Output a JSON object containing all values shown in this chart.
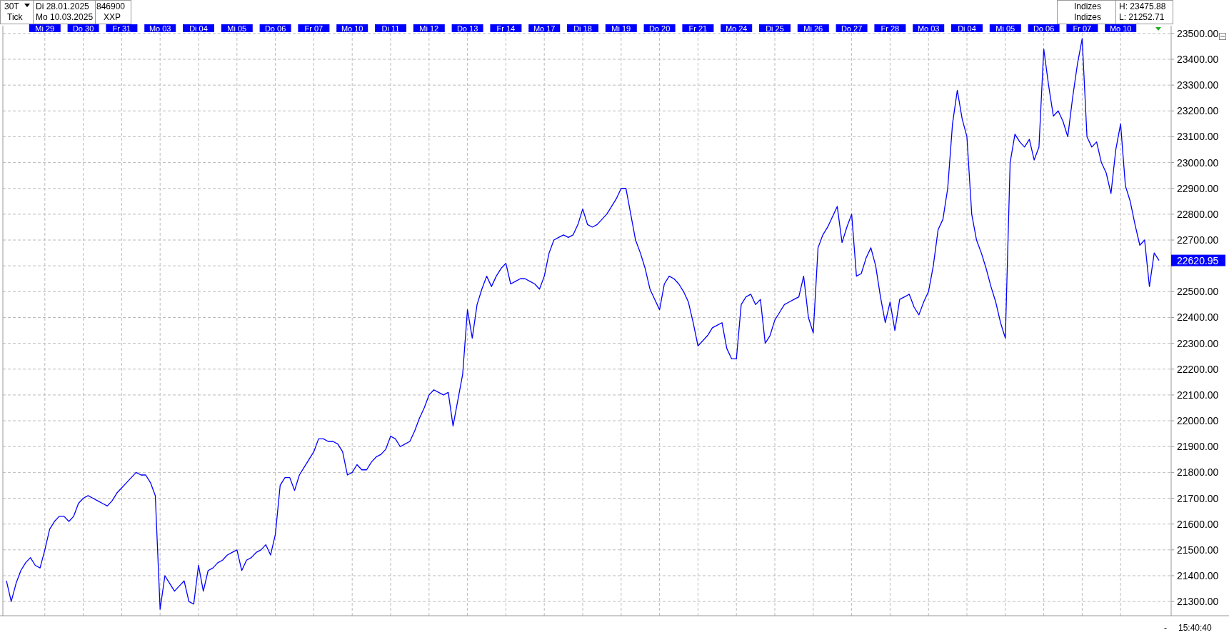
{
  "chart_data": {
    "type": "line",
    "categories": [
      null,
      null,
      null,
      null,
      null,
      null,
      null,
      null,
      "Mi 29",
      null,
      null,
      null,
      null,
      null,
      null,
      null,
      "Do 30",
      null,
      null,
      null,
      null,
      null,
      null,
      null,
      "Fr 31",
      null,
      null,
      null,
      null,
      null,
      null,
      null,
      "Mo 03",
      null,
      null,
      null,
      null,
      null,
      null,
      null,
      "Di 04",
      null,
      null,
      null,
      null,
      null,
      null,
      null,
      "Mi 05",
      null,
      null,
      null,
      null,
      null,
      null,
      null,
      "Do 06",
      null,
      null,
      null,
      null,
      null,
      null,
      null,
      "Fr 07",
      null,
      null,
      null,
      null,
      null,
      null,
      null,
      "Mo 10",
      null,
      null,
      null,
      null,
      null,
      null,
      null,
      "Di 11",
      null,
      null,
      null,
      null,
      null,
      null,
      null,
      "Mi 12",
      null,
      null,
      null,
      null,
      null,
      null,
      null,
      "Do 13",
      null,
      null,
      null,
      null,
      null,
      null,
      null,
      "Fr 14",
      null,
      null,
      null,
      null,
      null,
      null,
      null,
      "Mo 17",
      null,
      null,
      null,
      null,
      null,
      null,
      null,
      "Di 18",
      null,
      null,
      null,
      null,
      null,
      null,
      null,
      "Mi 19",
      null,
      null,
      null,
      null,
      null,
      null,
      null,
      "Do 20",
      null,
      null,
      null,
      null,
      null,
      null,
      null,
      "Fr 21",
      null,
      null,
      null,
      null,
      null,
      null,
      null,
      "Mo 24",
      null,
      null,
      null,
      null,
      null,
      null,
      null,
      "Di 25",
      null,
      null,
      null,
      null,
      null,
      null,
      null,
      "Mi 26",
      null,
      null,
      null,
      null,
      null,
      null,
      null,
      "Do 27",
      null,
      null,
      null,
      null,
      null,
      null,
      null,
      "Fr 28",
      null,
      null,
      null,
      null,
      null,
      null,
      null,
      "Mo 03",
      null,
      null,
      null,
      null,
      null,
      null,
      null,
      "Di 04",
      null,
      null,
      null,
      null,
      null,
      null,
      null,
      "Mi 05",
      null,
      null,
      null,
      null,
      null,
      null,
      null,
      "Do 06",
      null,
      null,
      null,
      null,
      null,
      null,
      null,
      "Fr 07",
      null,
      null,
      null,
      null,
      null,
      null,
      null,
      "Mo 10",
      null,
      null,
      null,
      null,
      null,
      null,
      null,
      null
    ],
    "series": [
      {
        "color": "#0000ff",
        "values": [
          21380,
          21300,
          21370,
          21420,
          21450,
          21470,
          21440,
          21430,
          21500,
          21580,
          21610,
          21630,
          21630,
          21610,
          21630,
          21680,
          21700,
          21710,
          21700,
          21690,
          21680,
          21670,
          21690,
          21720,
          21740,
          21760,
          21780,
          21800,
          21790,
          21790,
          21760,
          21710,
          21270,
          21400,
          21370,
          21340,
          21360,
          21380,
          21300,
          21290,
          21440,
          21340,
          21420,
          21430,
          21450,
          21460,
          21480,
          21490,
          21500,
          21420,
          21460,
          21470,
          21490,
          21500,
          21520,
          21480,
          21560,
          21750,
          21780,
          21780,
          21730,
          21790,
          21820,
          21850,
          21880,
          21930,
          21930,
          21920,
          21920,
          21910,
          21880,
          21790,
          21800,
          21830,
          21810,
          21810,
          21840,
          21860,
          21870,
          21890,
          21940,
          21930,
          21900,
          21910,
          21920,
          21960,
          22010,
          22050,
          22100,
          22120,
          22110,
          22100,
          22110,
          21980,
          22080,
          22180,
          22430,
          22320,
          22450,
          22510,
          22560,
          22520,
          22560,
          22590,
          22610,
          22530,
          22540,
          22550,
          22550,
          22540,
          22530,
          22510,
          22560,
          22650,
          22700,
          22710,
          22720,
          22710,
          22720,
          22760,
          22820,
          22760,
          22750,
          22760,
          22780,
          22800,
          22830,
          22860,
          22900,
          22900,
          22800,
          22700,
          22650,
          22590,
          22510,
          22470,
          22430,
          22530,
          22560,
          22550,
          22530,
          22500,
          22460,
          22380,
          22290,
          22310,
          22330,
          22360,
          22370,
          22380,
          22280,
          22240,
          22240,
          22450,
          22480,
          22490,
          22450,
          22470,
          22300,
          22330,
          22390,
          22420,
          22450,
          22460,
          22470,
          22480,
          22560,
          22400,
          22340,
          22670,
          22720,
          22750,
          22790,
          22830,
          22690,
          22750,
          22800,
          22560,
          22570,
          22630,
          22670,
          22600,
          22480,
          22380,
          22460,
          22350,
          22470,
          22480,
          22490,
          22440,
          22410,
          22460,
          22500,
          22600,
          22740,
          22780,
          22900,
          23150,
          23280,
          23170,
          23100,
          22800,
          22700,
          22650,
          22590,
          22520,
          22460,
          22380,
          22320,
          23000,
          23110,
          23080,
          23060,
          23090,
          23010,
          23060,
          23440,
          23300,
          23180,
          23200,
          23160,
          23100,
          23250,
          23380,
          23480,
          23100,
          23060,
          23080,
          23000,
          22960,
          22880,
          23050,
          23150,
          22910,
          22850,
          22760,
          22680,
          22700,
          22520,
          22650,
          22621
        ]
      }
    ],
    "ylim": [
      21245,
      23530
    ],
    "yticks": [
      {
        "value": 21300,
        "label": "21300.00"
      },
      {
        "value": 21400,
        "label": "21400.00"
      },
      {
        "value": 21500,
        "label": "21500.00"
      },
      {
        "value": 21600,
        "label": "21600.00"
      },
      {
        "value": 21700,
        "label": "21700.00"
      },
      {
        "value": 21800,
        "label": "21800.00"
      },
      {
        "value": 21900,
        "label": "21900.00"
      },
      {
        "value": 22000,
        "label": "22000.00"
      },
      {
        "value": 22100,
        "label": "22100.00"
      },
      {
        "value": 22200,
        "label": "22200.00"
      },
      {
        "value": 22300,
        "label": "22300.00"
      },
      {
        "value": 22400,
        "label": "22400.00"
      },
      {
        "value": 22500,
        "label": "22500.00"
      },
      {
        "value": 22600,
        "label": null
      },
      {
        "value": 22700,
        "label": "22700.00"
      },
      {
        "value": 22800,
        "label": "22800.00"
      },
      {
        "value": 22900,
        "label": "22900.00"
      },
      {
        "value": 23000,
        "label": "23000.00"
      },
      {
        "value": 23100,
        "label": "23100.00"
      },
      {
        "value": 23200,
        "label": "23200.00"
      },
      {
        "value": 23300,
        "label": "23300.00"
      },
      {
        "value": 23400,
        "label": "23400.00"
      },
      {
        "value": 23500,
        "label": "23500.00"
      }
    ],
    "grid": true,
    "line_style": "solid",
    "annotations": [
      "30T",
      "Tick",
      "Di 28.01.2025",
      "Mo 10.03.2025",
      "846900",
      "XXP",
      "Indizes",
      "Indizes",
      "H: 23475.88",
      "L: 21252.71",
      "-",
      "15:40:40",
      "22620.95"
    ]
  }
}
